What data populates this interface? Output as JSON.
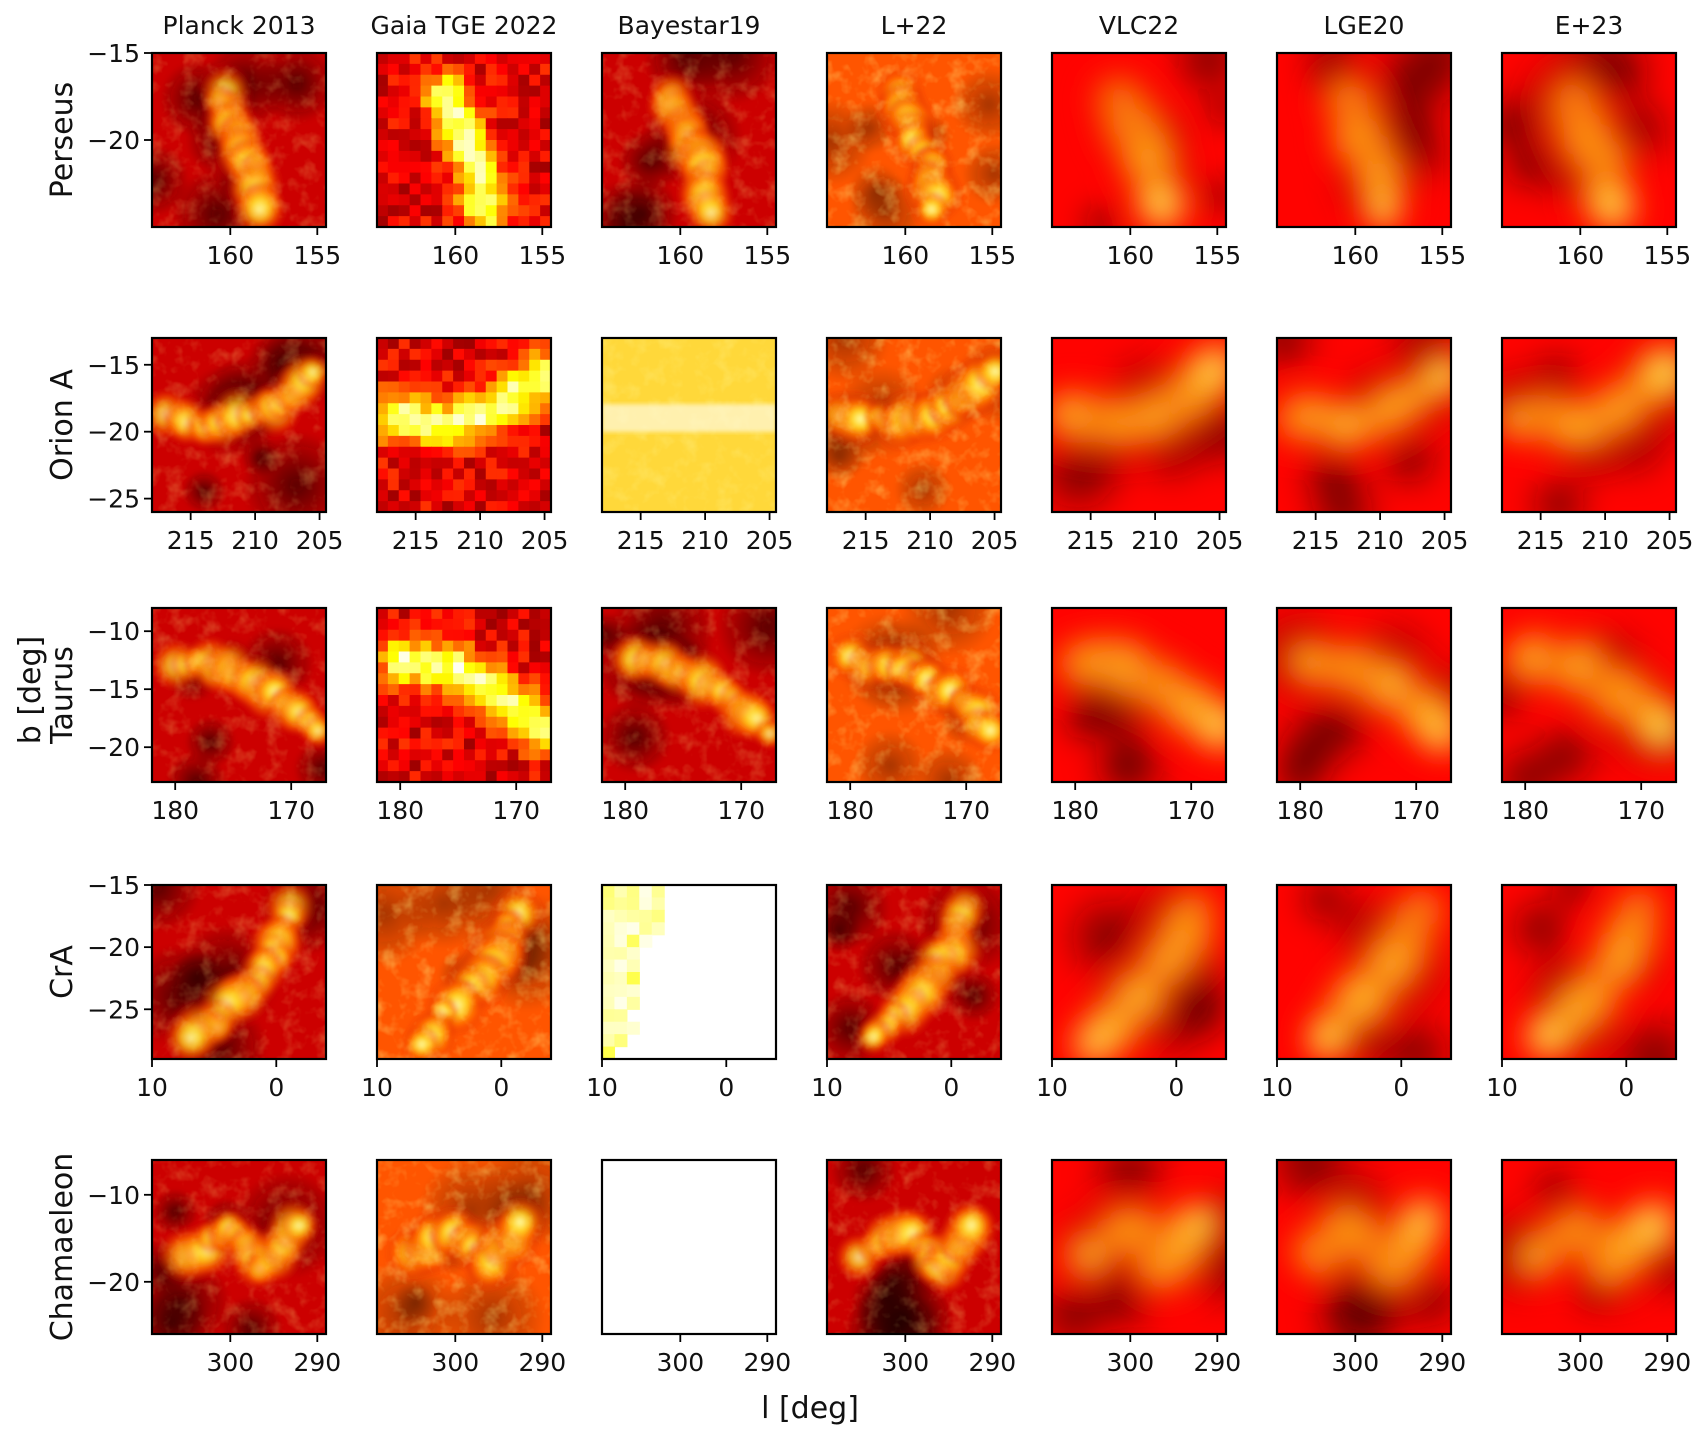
{
  "chart_data": {
    "type": "heatmap",
    "colormap": "hot",
    "xlabel": "l [deg]",
    "ylabel": "b [deg]",
    "x_axis_reversed": true,
    "columns": [
      "Planck 2013",
      "Gaia TGE 2022",
      "Bayestar19",
      "L+22",
      "VLC22",
      "LGE20",
      "E+23"
    ],
    "rows": [
      {
        "name": "Perseus",
        "xlim": [
          164.5,
          154.5
        ],
        "ylim": [
          -25,
          -15
        ],
        "xticks": [
          160,
          155
        ],
        "yticks": [
          -15,
          -20
        ],
        "xtick_labels": [
          "160",
          "155"
        ],
        "ytick_labels": [
          "−15",
          "−20"
        ],
        "seed": 11,
        "ridge": [
          [
            0.4,
            0.25
          ],
          [
            0.48,
            0.45
          ],
          [
            0.58,
            0.65
          ],
          [
            0.62,
            0.9
          ]
        ]
      },
      {
        "name": "Orion A",
        "xlim": [
          218,
          204.5
        ],
        "ylim": [
          -26,
          -13
        ],
        "xticks": [
          215,
          210,
          205
        ],
        "yticks": [
          -15,
          -20,
          -25
        ],
        "xtick_labels": [
          "215",
          "210",
          "205"
        ],
        "ytick_labels": [
          "−15",
          "−20",
          "−25"
        ],
        "seed": 23,
        "ridge": [
          [
            0.1,
            0.45
          ],
          [
            0.4,
            0.5
          ],
          [
            0.7,
            0.4
          ],
          [
            0.95,
            0.2
          ]
        ]
      },
      {
        "name": "Taurus",
        "xlim": [
          182,
          167
        ],
        "ylim": [
          -23,
          -8
        ],
        "xticks": [
          180,
          170
        ],
        "yticks": [
          -10,
          -15,
          -20
        ],
        "xtick_labels": [
          "180",
          "170"
        ],
        "ytick_labels": [
          "−10",
          "−15",
          "−20"
        ],
        "seed": 37,
        "ridge": [
          [
            0.15,
            0.3
          ],
          [
            0.45,
            0.35
          ],
          [
            0.7,
            0.5
          ],
          [
            0.95,
            0.7
          ]
        ]
      },
      {
        "name": "CrA",
        "xlim": [
          10,
          -4
        ],
        "ylim": [
          -29,
          -15
        ],
        "xticks": [
          10,
          0
        ],
        "yticks": [
          -15,
          -20,
          -25
        ],
        "xtick_labels": [
          "10",
          "0"
        ],
        "ytick_labels": [
          "−15",
          "−20",
          "−25"
        ],
        "seed": 53,
        "ridge": [
          [
            0.8,
            0.15
          ],
          [
            0.7,
            0.4
          ],
          [
            0.5,
            0.65
          ],
          [
            0.25,
            0.9
          ]
        ]
      },
      {
        "name": "Chamaeleon",
        "xlim": [
          309,
          289
        ],
        "ylim": [
          -26,
          -6
        ],
        "xticks": [
          300,
          290
        ],
        "yticks": [
          -10,
          -20
        ],
        "xtick_labels": [
          "300",
          "290"
        ],
        "ytick_labels": [
          "−10",
          "−20"
        ],
        "seed": 71,
        "ridge": [
          [
            0.2,
            0.55
          ],
          [
            0.45,
            0.4
          ],
          [
            0.65,
            0.6
          ],
          [
            0.85,
            0.35
          ]
        ]
      }
    ],
    "panels": [
      [
        "full",
        "pixelated",
        "full",
        "bright",
        "smooth",
        "smooth",
        "smooth"
      ],
      [
        "full",
        "pixelated",
        "saturated",
        "bright",
        "smooth",
        "smooth",
        "smooth"
      ],
      [
        "full",
        "pixelated",
        "full",
        "bright",
        "smooth",
        "smooth",
        "smooth"
      ],
      [
        "full",
        "bright",
        "partial",
        "full",
        "smooth",
        "smooth",
        "smooth"
      ],
      [
        "full",
        "bright",
        "empty",
        "full",
        "smooth",
        "smooth",
        "smooth"
      ]
    ]
  }
}
